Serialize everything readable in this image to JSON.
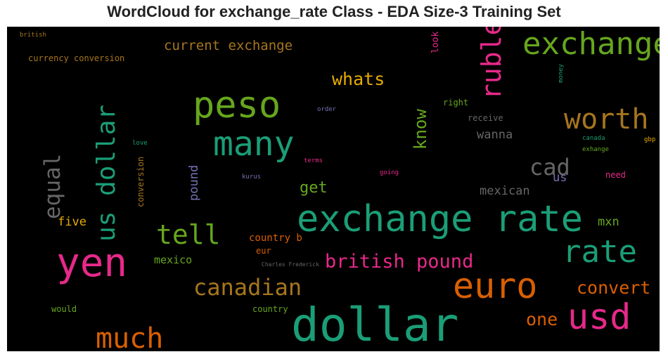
{
  "title": "WordCloud for exchange_rate Class - EDA Size-3 Training Set",
  "colors": {
    "background": "#000000",
    "teal": "#1b9e77",
    "orange": "#d95f02",
    "purple": "#7570b3",
    "pink": "#e7298a",
    "green": "#66a61e",
    "gold": "#e6ab02",
    "brown": "#a6761d",
    "gray": "#666666"
  },
  "words": {
    "british_top": "british",
    "currency_conversion": "currency conversion",
    "current_exchange": "current exchange",
    "look": "look",
    "ruble": "ruble",
    "exchange": "exchange",
    "money": "money",
    "whats": "whats",
    "peso": "peso",
    "right": "right",
    "order": "order",
    "receive": "receive",
    "worth": "worth",
    "us_dollar": "us dollar",
    "many": "many",
    "know": "know",
    "wanna": "wanna",
    "canada": "canada",
    "gbp": "gbp",
    "exhange": "exhange",
    "love": "love",
    "conversion": "conversion",
    "terms": "terms",
    "cad": "cad",
    "equal": "equal",
    "pound": "pound",
    "kurus": "kurus",
    "going": "going",
    "us": "us",
    "need": "need",
    "get": "get",
    "mexican": "mexican",
    "exchange_rate": "exchange rate",
    "five": "five",
    "mxn": "mxn",
    "tell": "tell",
    "country_b": "country b",
    "rate": "rate",
    "eur": "eur",
    "yen": "yen",
    "mexico": "mexico",
    "charles_frederick": "Charles Frederick",
    "british_pound": "british pound",
    "canadian": "canadian",
    "euro": "euro",
    "convert": "convert",
    "would": "would",
    "country": "country",
    "one": "one",
    "usd": "usd",
    "dollar": "dollar",
    "much": "much"
  }
}
